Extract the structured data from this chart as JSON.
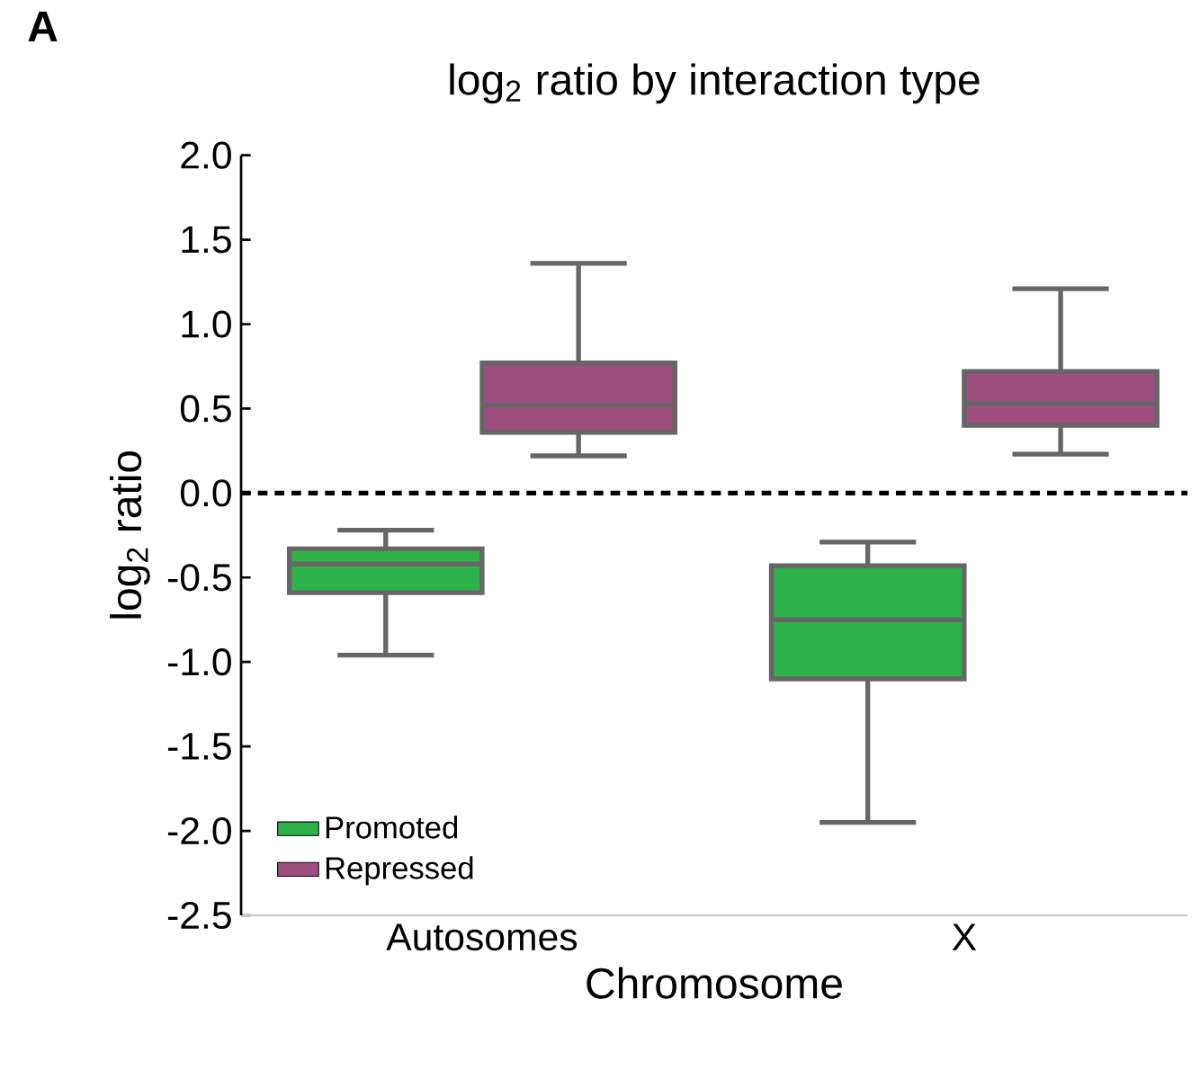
{
  "chart_data": {
    "type": "box",
    "title": "log$_{2}$ ratio by interaction type",
    "xlabel": "Chromosome",
    "ylabel": "log$_{2}$ ratio",
    "categories": [
      "Autosomes",
      "X"
    ],
    "series": [
      {
        "name": "Promoted",
        "color": "#2db34a",
        "boxes": [
          {
            "low": -0.96,
            "q1": -0.59,
            "median": -0.42,
            "q3": -0.33,
            "high": -0.22
          },
          {
            "low": -1.95,
            "q1": -1.1,
            "median": -0.75,
            "q3": -0.43,
            "high": -0.29
          }
        ]
      },
      {
        "name": "Repressed",
        "color": "#9e4f80",
        "boxes": [
          {
            "low": 0.22,
            "q1": 0.36,
            "median": 0.52,
            "q3": 0.77,
            "high": 1.36
          },
          {
            "low": 0.23,
            "q1": 0.4,
            "median": 0.53,
            "q3": 0.72,
            "high": 1.21
          }
        ]
      }
    ],
    "ylim": [
      -2.5,
      2.0
    ],
    "yticks": [
      {
        "value": -2.5,
        "label": "-2.5"
      },
      {
        "value": -2,
        "label": "-2.0"
      },
      {
        "value": -1.5,
        "label": "-1.5"
      },
      {
        "value": -1,
        "label": "-1.0"
      },
      {
        "value": -0.5,
        "label": "-0.5"
      },
      {
        "value": 0,
        "label": "0.0"
      },
      {
        "value": 0.5,
        "label": "0.5"
      },
      {
        "value": 1,
        "label": "1.0"
      },
      {
        "value": 1.5,
        "label": "1.5"
      },
      {
        "value": 2,
        "label": "2.0"
      }
    ],
    "ref_lines": [
      {
        "axis": "y",
        "value": 0,
        "line_style": "dashed",
        "color": "#000000"
      }
    ],
    "legend": "bottom left",
    "grid": false,
    "annotations": [
      "A"
    ]
  }
}
